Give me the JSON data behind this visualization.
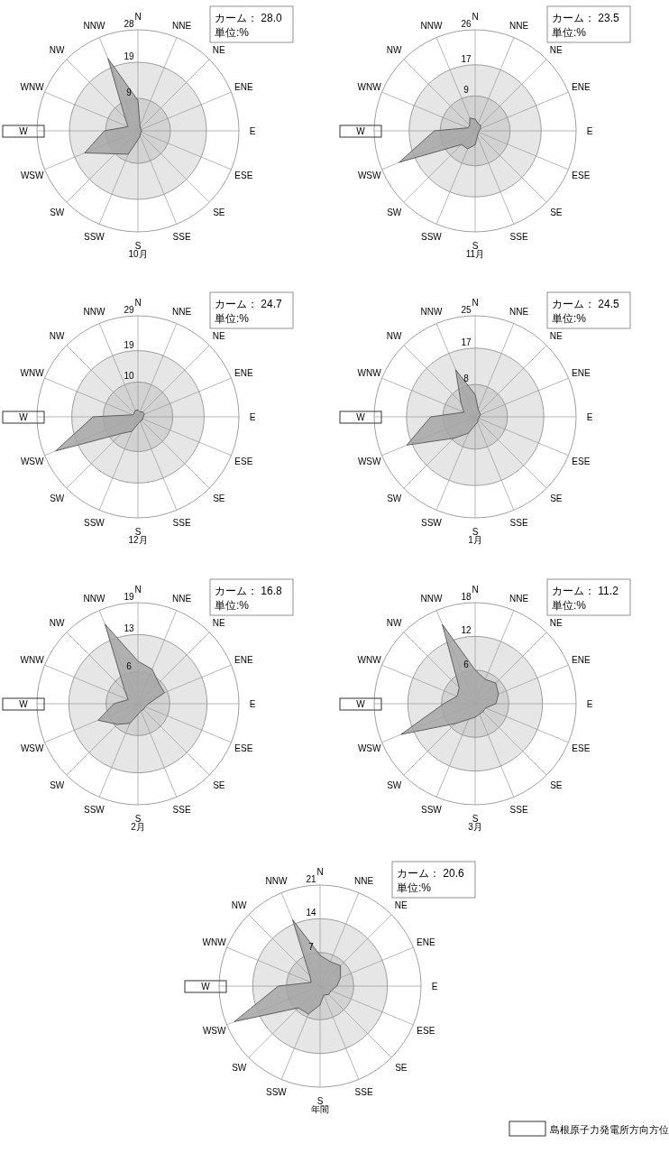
{
  "chart_data": [
    {
      "type": "radar",
      "title": "10月",
      "categories": [
        "N",
        "NNE",
        "NE",
        "ENE",
        "E",
        "ESE",
        "SE",
        "SSE",
        "S",
        "SSW",
        "SW",
        "WSW",
        "W",
        "WNW",
        "NW",
        "NNW"
      ],
      "ylim": [
        0,
        28
      ],
      "yticks": [
        9,
        19,
        28
      ],
      "annotations": [
        "カーム： 28.0",
        "単位:%"
      ],
      "series": [
        {
          "color": "#a6a6a6",
          "values": [
            8.4,
            1.5,
            1,
            1,
            1,
            1,
            1,
            1.5,
            2.5,
            7,
            9,
            16,
            9.3,
            3,
            5,
            21.7
          ]
        }
      ]
    },
    {
      "type": "radar",
      "title": "11月",
      "categories": [
        "N",
        "NNE",
        "NE",
        "ENE",
        "E",
        "ESE",
        "SE",
        "SSE",
        "S",
        "SSW",
        "SW",
        "WSW",
        "W",
        "WNW",
        "NW",
        "NNW"
      ],
      "ylim": [
        0,
        26
      ],
      "yticks": [
        9,
        17,
        26
      ],
      "annotations": [
        "カーム： 23.5",
        "単位:%"
      ],
      "series": [
        {
          "color": "#a6a6a6",
          "values": [
            3,
            2,
            2,
            1.5,
            1,
            1,
            1,
            1.5,
            3.6,
            5,
            5,
            21.2,
            10.5,
            2,
            2,
            3.6
          ]
        }
      ]
    },
    {
      "type": "radar",
      "title": "12月",
      "categories": [
        "N",
        "NNE",
        "NE",
        "ENE",
        "E",
        "ESE",
        "SE",
        "SSE",
        "S",
        "SSW",
        "SW",
        "WSW",
        "W",
        "WNW",
        "NW",
        "NNW"
      ],
      "ylim": [
        0,
        29
      ],
      "yticks": [
        10,
        19,
        29
      ],
      "annotations": [
        "カーム： 24.7",
        "単位:%"
      ],
      "series": [
        {
          "color": "#a6a6a6",
          "values": [
            2,
            1.5,
            2,
            2,
            1.5,
            1.5,
            1.5,
            1.5,
            2,
            4.5,
            6.8,
            25.6,
            12.9,
            1.5,
            1.5,
            2
          ]
        }
      ]
    },
    {
      "type": "radar",
      "title": "1月",
      "categories": [
        "N",
        "NNE",
        "NE",
        "ENE",
        "E",
        "ESE",
        "SE",
        "SSE",
        "S",
        "SSW",
        "SW",
        "WSW",
        "W",
        "WNW",
        "NW",
        "NNW"
      ],
      "ylim": [
        0,
        25
      ],
      "yticks": [
        8,
        17,
        25
      ],
      "annotations": [
        "カーム： 24.5",
        "単位:%"
      ],
      "series": [
        {
          "color": "#a6a6a6",
          "values": [
            5.5,
            2,
            1.5,
            1.5,
            1,
            1,
            1,
            1.5,
            2,
            4.4,
            7.5,
            18.3,
            11,
            3,
            5,
            12.6
          ]
        }
      ]
    },
    {
      "type": "radar",
      "title": "2月",
      "categories": [
        "N",
        "NNE",
        "NE",
        "ENE",
        "E",
        "ESE",
        "SE",
        "SSE",
        "S",
        "SSW",
        "SW",
        "WSW",
        "W",
        "WNW",
        "NW",
        "NNW"
      ],
      "ylim": [
        0,
        19
      ],
      "yticks": [
        6,
        13,
        19
      ],
      "annotations": [
        "カーム： 16.8",
        "単位:%"
      ],
      "series": [
        {
          "color": "#a6a6a6",
          "values": [
            8,
            7,
            5.5,
            5.4,
            2,
            1.5,
            1.5,
            1.5,
            2,
            4,
            5.5,
            8.1,
            4.5,
            2,
            3.5,
            16.2
          ]
        }
      ]
    },
    {
      "type": "radar",
      "title": "3月",
      "categories": [
        "N",
        "NNE",
        "NE",
        "ENE",
        "E",
        "ESE",
        "SE",
        "SSE",
        "S",
        "SSW",
        "SW",
        "WSW",
        "W",
        "WNW",
        "NW",
        "NNW"
      ],
      "ylim": [
        0,
        18
      ],
      "yticks": [
        6,
        12,
        18
      ],
      "annotations": [
        "カーム： 11.2",
        "単位:%"
      ],
      "series": [
        {
          "color": "#a6a6a6",
          "values": [
            6,
            4.7,
            5.2,
            4.5,
            3.7,
            2,
            2,
            2,
            2.4,
            3,
            5,
            14.3,
            5.6,
            3.5,
            4,
            15.3
          ]
        }
      ]
    },
    {
      "type": "radar",
      "title": "年間",
      "categories": [
        "N",
        "NNE",
        "NE",
        "ENE",
        "E",
        "ESE",
        "SE",
        "SSE",
        "S",
        "SSW",
        "SW",
        "WSW",
        "W",
        "WNW",
        "NW",
        "NNW"
      ],
      "ylim": [
        0,
        21
      ],
      "yticks": [
        7,
        14,
        21
      ],
      "annotations": [
        "カーム： 20.6",
        "単位:%"
      ],
      "series": [
        {
          "color": "#a6a6a6",
          "values": [
            6.4,
            5.5,
            6,
            4.6,
            3.5,
            2.5,
            2.5,
            2,
            3.9,
            6.3,
            6.4,
            19.3,
            8.7,
            2,
            3,
            14.9
          ]
        }
      ]
    },
    {
      "type": "other",
      "annotations": [
        {
          "text": "島根原子力発電所方向方位",
          "x": "W"
        }
      ]
    }
  ]
}
